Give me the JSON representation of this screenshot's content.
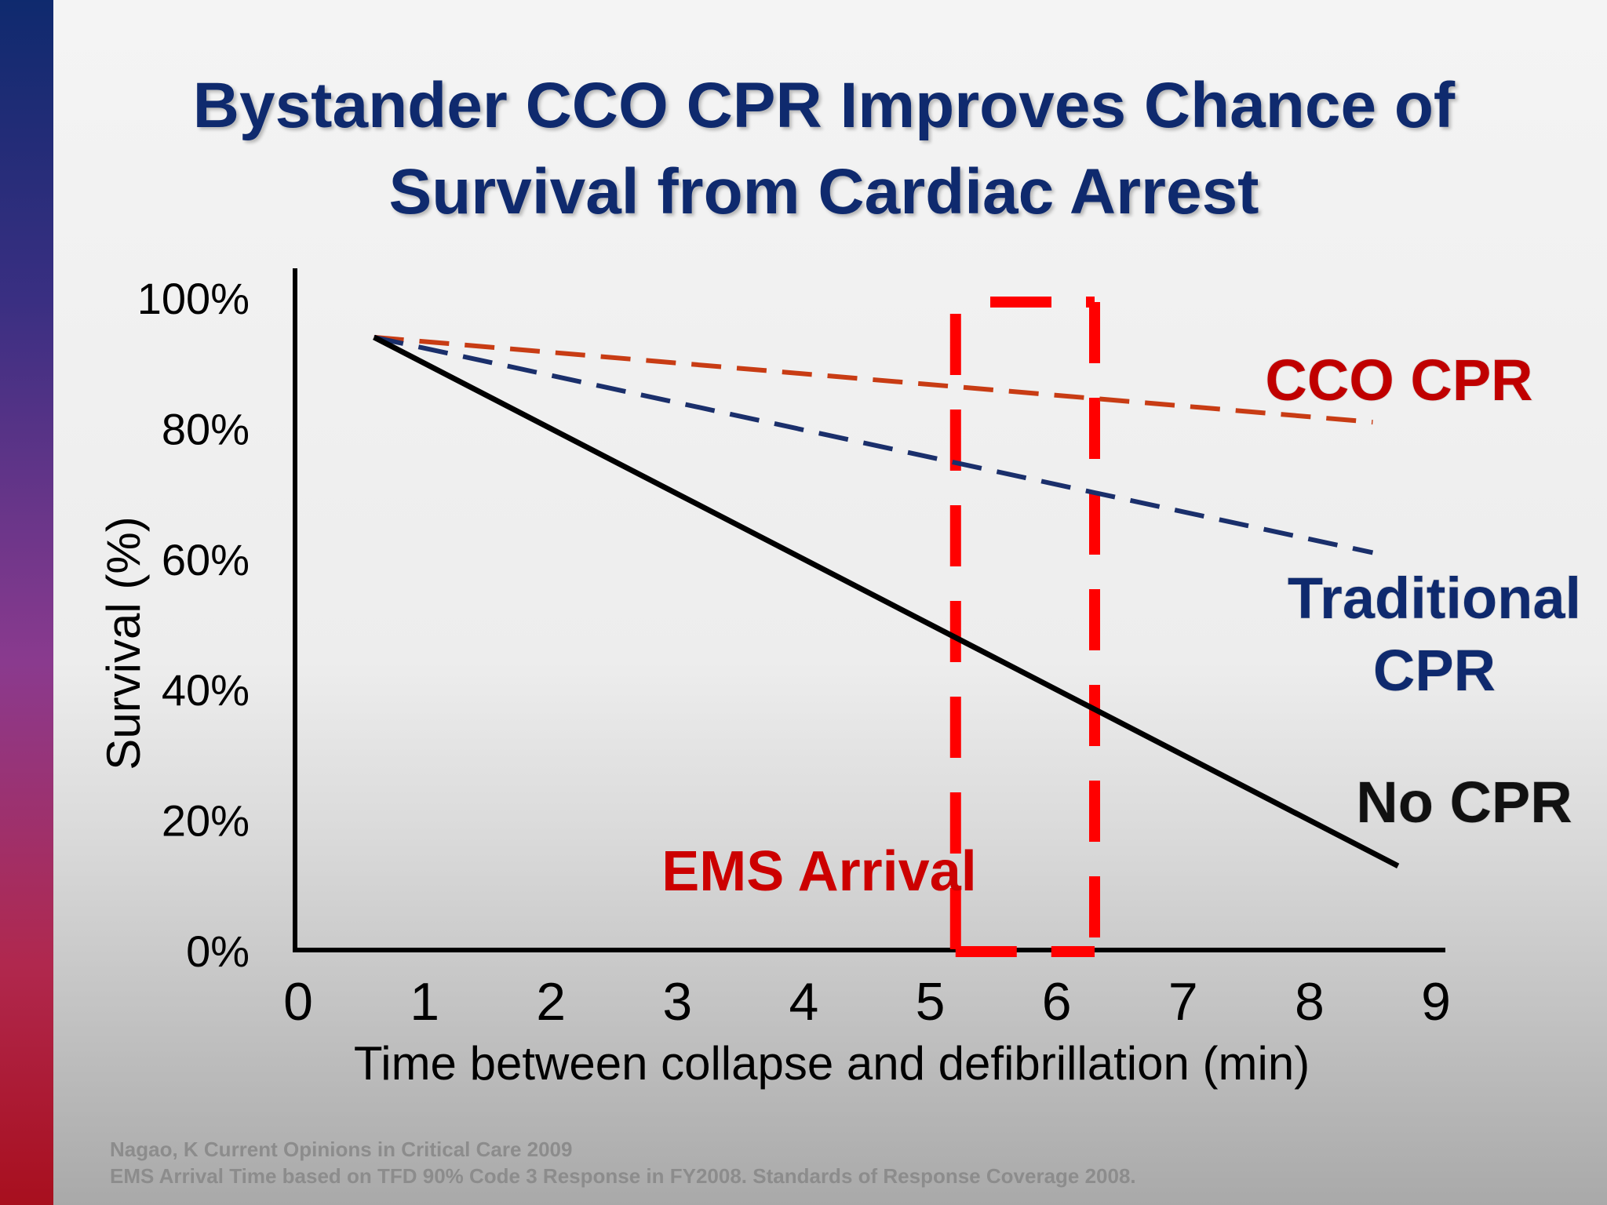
{
  "slide": {
    "title_line1": "Bystander CCO CPR Improves Chance of",
    "title_line2": "Survival from Cardiac Arrest",
    "footnote_line1": "Nagao, K  Current  Opinions in Critical Care  2009",
    "footnote_line2": "EMS Arrival Time based on TFD 90% Code 3 Response in FY2008.  Standards of Response Coverage 2008."
  },
  "chart_data": {
    "type": "line",
    "xlabel": "Time between collapse and defibrillation (min)",
    "ylabel": "Survival (%)",
    "xlim": [
      0,
      9
    ],
    "ylim": [
      0,
      100
    ],
    "x_ticks": [
      "0",
      "1",
      "2",
      "3",
      "4",
      "5",
      "6",
      "7",
      "8",
      "9"
    ],
    "y_ticks": [
      "0%",
      "20%",
      "40%",
      "60%",
      "80%",
      "100%"
    ],
    "grid": false,
    "series": [
      {
        "name": "CCO CPR",
        "color": "#c83c14",
        "dash": true,
        "x": [
          0.6,
          8.5
        ],
        "y": [
          94,
          81
        ]
      },
      {
        "name": "Traditional CPR",
        "color": "#1a2f6b",
        "dash": true,
        "x": [
          0.6,
          8.5
        ],
        "y": [
          94,
          61
        ]
      },
      {
        "name": "No CPR",
        "color": "#000000",
        "dash": false,
        "x": [
          0.6,
          8.7
        ],
        "y": [
          94,
          13
        ]
      }
    ],
    "series_labels": [
      {
        "text": "CCO CPR",
        "color": "#c00000"
      },
      {
        "text": "Traditional",
        "color": "#0f2a6e"
      },
      {
        "text": "CPR",
        "color": "#0f2a6e"
      },
      {
        "text": "No CPR",
        "color": "#111111"
      }
    ],
    "annotation": {
      "text": "EMS Arrival",
      "color": "#cc0000",
      "box_color": "#ff0000",
      "x_range": [
        5.2,
        6.3
      ],
      "y_range": [
        0,
        100
      ]
    }
  }
}
